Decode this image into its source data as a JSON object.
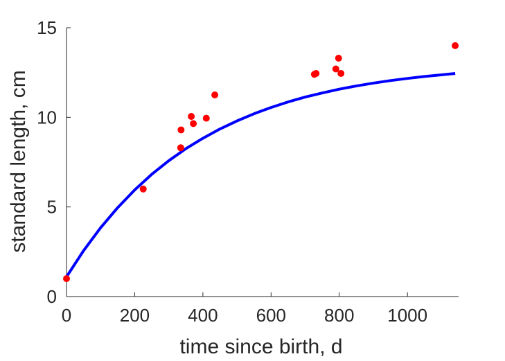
{
  "chart_data": {
    "type": "scatter",
    "xlabel": "time since birth, d",
    "ylabel": "standard length, cm",
    "xlim": [
      0,
      1150
    ],
    "ylim": [
      0,
      15
    ],
    "xticks": [
      0,
      200,
      400,
      600,
      800,
      1000
    ],
    "yticks": [
      0,
      5,
      10,
      15
    ],
    "xtick_labels": [
      "0",
      "200",
      "400",
      "600",
      "800",
      "1000"
    ],
    "ytick_labels": [
      "0",
      "5",
      "10",
      "15"
    ],
    "grid": false,
    "series": [
      {
        "type": "scatter",
        "color": "#ff0000",
        "marker": "filled-circle",
        "x": [
          0,
          225,
          335,
          336,
          366,
          372,
          410,
          435,
          727,
          732,
          790,
          798,
          805,
          1140
        ],
        "y": [
          1.0,
          6.0,
          8.3,
          9.3,
          10.05,
          9.65,
          9.95,
          11.25,
          12.4,
          12.45,
          12.7,
          13.3,
          12.45,
          14.0
        ]
      },
      {
        "type": "line",
        "color": "#0000ff",
        "x": [
          0,
          50,
          100,
          150,
          200,
          250,
          300,
          350,
          400,
          450,
          500,
          550,
          600,
          650,
          700,
          750,
          800,
          850,
          900,
          950,
          1000,
          1050,
          1100,
          1140
        ],
        "y": [
          1.1,
          2.56,
          3.84,
          4.96,
          5.95,
          6.82,
          7.58,
          8.25,
          8.83,
          9.35,
          9.8,
          10.2,
          10.55,
          10.86,
          11.13,
          11.36,
          11.57,
          11.75,
          11.91,
          12.05,
          12.17,
          12.28,
          12.37,
          12.45
        ]
      }
    ]
  }
}
